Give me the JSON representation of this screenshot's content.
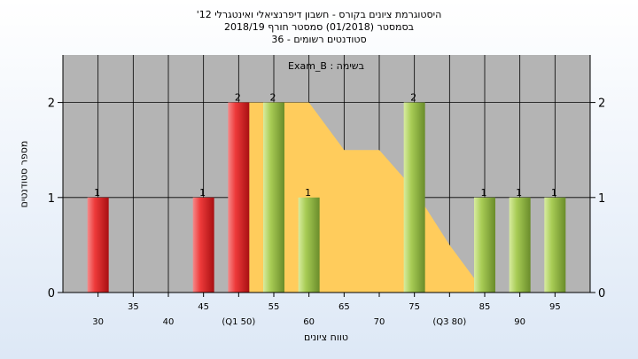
{
  "chart_data": {
    "type": "bar",
    "title_lines": [
      "היסטוגרמת ציונים בקורס - חשבון דיפרנציאלי ואינטגרלי 12'",
      "בסמסטר  (01/2018)  סמסטר חורף 2018/19",
      "סטודנטים רשומים - 36"
    ],
    "legend": "בשימה : Exam_B",
    "xlabel": "טווח ציונים",
    "ylabel": "מספר סטודנטים",
    "ylim": [
      0,
      2.5
    ],
    "yticks": [
      0,
      1,
      2
    ],
    "xlim": [
      25,
      100
    ],
    "grid": true,
    "x_ticks": [
      {
        "value": 30,
        "label": "30",
        "row": 2
      },
      {
        "value": 35,
        "label": "35",
        "row": 1
      },
      {
        "value": 40,
        "label": "40",
        "row": 2
      },
      {
        "value": 45,
        "label": "45",
        "row": 1
      },
      {
        "value": 50,
        "label": "(Q1 50)",
        "row": 2
      },
      {
        "value": 55,
        "label": "55",
        "row": 1
      },
      {
        "value": 60,
        "label": "60",
        "row": 2
      },
      {
        "value": 65,
        "label": "65",
        "row": 1
      },
      {
        "value": 70,
        "label": "70",
        "row": 2
      },
      {
        "value": 75,
        "label": "75",
        "row": 1
      },
      {
        "value": 80,
        "label": "(Q3 80)",
        "row": 2
      },
      {
        "value": 85,
        "label": "85",
        "row": 1
      },
      {
        "value": 90,
        "label": "90",
        "row": 2
      },
      {
        "value": 95,
        "label": "95",
        "row": 1
      }
    ],
    "bars": [
      {
        "x": 30,
        "value": 1,
        "label": "1",
        "color": "red"
      },
      {
        "x": 45,
        "value": 1,
        "label": "1",
        "color": "red"
      },
      {
        "x": 50,
        "value": 2,
        "label": "2",
        "color": "red"
      },
      {
        "x": 55,
        "value": 2,
        "label": "2",
        "color": "green"
      },
      {
        "x": 60,
        "value": 1,
        "label": "1",
        "color": "green"
      },
      {
        "x": 75,
        "value": 2,
        "label": "2",
        "color": "green"
      },
      {
        "x": 85,
        "value": 1,
        "label": "1",
        "color": "green"
      },
      {
        "x": 90,
        "value": 1,
        "label": "1",
        "color": "green"
      },
      {
        "x": 95,
        "value": 1,
        "label": "1",
        "color": "green"
      }
    ],
    "area": {
      "x": [
        50,
        55,
        60,
        65,
        70,
        75,
        80,
        85
      ],
      "y": [
        2,
        2,
        2,
        1.5,
        1.5,
        1.08,
        0.5,
        0
      ]
    },
    "colors": {
      "red": "#e8282a",
      "green": "#9cc24a",
      "area": "#ffcc5c",
      "plot_bg": "#b4b4b4",
      "grid": "#000000"
    }
  }
}
